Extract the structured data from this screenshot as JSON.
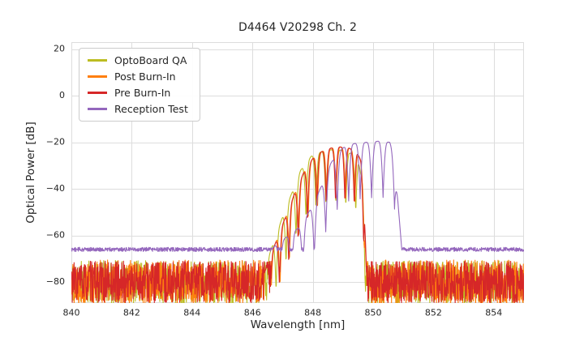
{
  "chart_data": {
    "type": "line",
    "title": "D4464 V20298 Ch. 2",
    "xlabel": "Wavelength [nm]",
    "ylabel": "Optical Power [dB]",
    "xlim": [
      840,
      855
    ],
    "ylim": [
      -89,
      23
    ],
    "xticks": [
      840,
      842,
      844,
      846,
      848,
      850,
      852,
      854
    ],
    "yticks": [
      20,
      0,
      -20,
      -40,
      -60,
      -80
    ],
    "grid": true,
    "grid_color": "#dddddd",
    "tick_color": "#262626",
    "background": "#ffffff",
    "line_width": 1.1,
    "legend_position": "upper left",
    "series": [
      {
        "name": "OptoBoard QA",
        "color": "#bcbd22",
        "floor": -80,
        "floor_noise": 9.3,
        "seed": 11,
        "mode_spacing": 0.33,
        "mode_depth": 24,
        "mode_phase": 846.95,
        "envelope": [
          [
            846.3,
            -78
          ],
          [
            846.7,
            -63
          ],
          [
            847.0,
            -52
          ],
          [
            847.3,
            -42
          ],
          [
            847.6,
            -32
          ],
          [
            847.95,
            -26
          ],
          [
            848.3,
            -24
          ],
          [
            848.7,
            -23
          ],
          [
            849.0,
            -23.5
          ],
          [
            849.3,
            -25
          ],
          [
            849.5,
            -27
          ],
          [
            849.65,
            -38
          ],
          [
            849.72,
            -60
          ],
          [
            849.78,
            -85
          ]
        ]
      },
      {
        "name": "Post Burn-In",
        "color": "#ff7f0e",
        "floor": -80,
        "floor_noise": 9.5,
        "seed": 22,
        "mode_spacing": 0.31,
        "mode_depth": 24,
        "mode_phase": 847.07,
        "envelope": [
          [
            846.4,
            -76
          ],
          [
            846.8,
            -62
          ],
          [
            847.1,
            -52
          ],
          [
            847.4,
            -42
          ],
          [
            847.7,
            -33
          ],
          [
            848.0,
            -27
          ],
          [
            848.3,
            -24
          ],
          [
            848.6,
            -22.5
          ],
          [
            848.9,
            -22
          ],
          [
            849.2,
            -22.5
          ],
          [
            849.45,
            -24
          ],
          [
            849.6,
            -28
          ],
          [
            849.72,
            -45
          ],
          [
            849.8,
            -85
          ]
        ]
      },
      {
        "name": "Pre Burn-In",
        "color": "#d62728",
        "floor": -80,
        "floor_noise": 9.0,
        "seed": 33,
        "mode_spacing": 0.31,
        "mode_depth": 24,
        "mode_phase": 847.05,
        "envelope": [
          [
            846.4,
            -76
          ],
          [
            846.8,
            -62
          ],
          [
            847.1,
            -52
          ],
          [
            847.4,
            -42
          ],
          [
            847.7,
            -33
          ],
          [
            848.0,
            -27
          ],
          [
            848.3,
            -24
          ],
          [
            848.6,
            -22.5
          ],
          [
            848.9,
            -22
          ],
          [
            849.2,
            -22.5
          ],
          [
            849.45,
            -24
          ],
          [
            849.6,
            -28
          ],
          [
            849.72,
            -45
          ],
          [
            849.8,
            -85
          ]
        ]
      },
      {
        "name": "Reception Test",
        "color": "#9467bd",
        "floor": -66,
        "floor_noise": 0.9,
        "seed": 44,
        "mode_spacing": 0.38,
        "mode_depth": 24,
        "mode_phase": 849.0,
        "envelope": [
          [
            846.6,
            -66
          ],
          [
            847.2,
            -60
          ],
          [
            847.6,
            -56
          ],
          [
            848.0,
            -47
          ],
          [
            848.35,
            -37
          ],
          [
            848.6,
            -29
          ],
          [
            848.85,
            -24
          ],
          [
            849.1,
            -21.5
          ],
          [
            849.4,
            -20.5
          ],
          [
            849.8,
            -20
          ],
          [
            850.2,
            -19.5
          ],
          [
            850.55,
            -20
          ],
          [
            850.72,
            -25
          ],
          [
            850.85,
            -50
          ],
          [
            850.95,
            -66
          ]
        ]
      }
    ]
  }
}
